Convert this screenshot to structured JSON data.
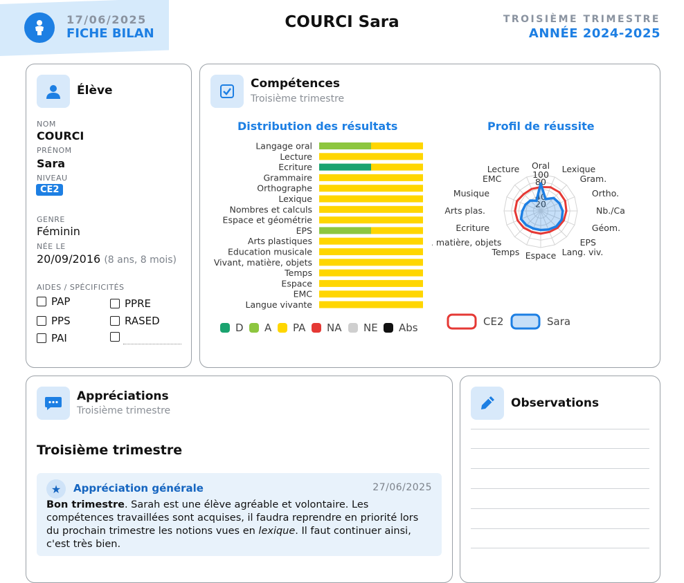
{
  "header": {
    "date": "17/06/2025",
    "doc_type": "FICHE BILAN",
    "student_name": "COURCI Sara",
    "trimester": "TROISIÈME TRIMESTRE",
    "school_year": "ANNÉE 2024-2025"
  },
  "student_card": {
    "title": "Élève",
    "nom_label": "NOM",
    "nom": "COURCI",
    "prenom_label": "PRÉNOM",
    "prenom": "Sara",
    "niveau_label": "NIVEAU",
    "niveau": "CE2",
    "genre_label": "GENRE",
    "genre": "Féminin",
    "nee_label": "NÉE LE",
    "nee_le": "20/09/2016",
    "age": "(8 ans, 8 mois)",
    "aides_label": "AIDES / SPÉCIFICITÉS",
    "aides": [
      "PAP",
      "PPRE",
      "PPS",
      "RASED",
      "PAI",
      ""
    ]
  },
  "competences_card": {
    "title": "Compétences",
    "subtitle": "Troisième trimestre",
    "bar_chart_title": "Distribution des résultats",
    "radar_chart_title": "Profil de réussite"
  },
  "chart_data": [
    {
      "type": "bar",
      "orientation": "horizontal",
      "stacked": true,
      "title": "Distribution des résultats",
      "categories": [
        "Langage oral",
        "Lecture",
        "Ecriture",
        "Grammaire",
        "Orthographe",
        "Lexique",
        "Nombres et calculs",
        "Espace et géométrie",
        "EPS",
        "Arts plastiques",
        "Education musicale",
        "Vivant, matière, objets",
        "Temps",
        "Espace",
        "EMC",
        "Langue vivante"
      ],
      "series": [
        {
          "name": "D",
          "color": "#1aa36f",
          "values": [
            0,
            0,
            50,
            0,
            0,
            0,
            0,
            0,
            0,
            0,
            0,
            0,
            0,
            0,
            0,
            0
          ]
        },
        {
          "name": "A",
          "color": "#8dc63f",
          "values": [
            50,
            0,
            0,
            0,
            0,
            0,
            0,
            0,
            50,
            0,
            0,
            0,
            0,
            0,
            0,
            0
          ]
        },
        {
          "name": "PA",
          "color": "#ffd600",
          "values": [
            50,
            100,
            50,
            100,
            100,
            100,
            100,
            100,
            50,
            100,
            100,
            100,
            100,
            100,
            100,
            100
          ]
        },
        {
          "name": "NA",
          "color": "#e53935",
          "values": [
            0,
            0,
            0,
            0,
            0,
            0,
            0,
            0,
            0,
            0,
            0,
            0,
            0,
            0,
            0,
            0
          ]
        },
        {
          "name": "NE",
          "color": "#cfcfcf",
          "values": [
            0,
            0,
            0,
            0,
            0,
            0,
            0,
            0,
            0,
            0,
            0,
            0,
            0,
            0,
            0,
            0
          ]
        },
        {
          "name": "Abs",
          "color": "#111111",
          "values": [
            0,
            0,
            0,
            0,
            0,
            0,
            0,
            0,
            0,
            0,
            0,
            0,
            0,
            0,
            0,
            0
          ]
        }
      ],
      "xlim": [
        0,
        100
      ],
      "legend_position": "bottom"
    },
    {
      "type": "radar",
      "title": "Profil de réussite",
      "axes": [
        "Oral",
        "Lexique",
        "Gram.",
        "Ortho.",
        "Nb./Ca",
        "Géom.",
        "EPS",
        "Lang. viv.",
        "Espace",
        "Temps",
        "Vivant, matière, objets",
        "Ecriture",
        "Arts plas.",
        "Musique",
        "EMC",
        "Lecture"
      ],
      "rlim": [
        0,
        100
      ],
      "rticks": [
        "20",
        "40",
        "80",
        "100"
      ],
      "series": [
        {
          "name": "CE2",
          "color": "#e53935",
          "values": [
            65,
            70,
            72,
            72,
            70,
            68,
            65,
            62,
            62,
            62,
            65,
            68,
            70,
            70,
            65,
            65
          ]
        },
        {
          "name": "Sara",
          "color": "#1d7fe3",
          "values": [
            75,
            35,
            50,
            55,
            60,
            62,
            60,
            55,
            52,
            52,
            55,
            58,
            50,
            45,
            40,
            30
          ]
        }
      ],
      "legend_position": "bottom"
    }
  ],
  "appreciations_card": {
    "title": "Appréciations",
    "subtitle": "Troisième trimestre",
    "section_heading": "Troisième trimestre",
    "general_title": "Appréciation générale",
    "general_date": "27/06/2025",
    "text_bold": "Bon trimestre",
    "text_part1": ". Sarah est une élève agréable et volontaire. Les compétences travaillées sont acquises, il faudra reprendre en priorité lors du prochain trimestre les notions vues en ",
    "text_italic": "lexique",
    "text_part2": ". Il faut continuer ainsi, c'est très bien."
  },
  "observations_card": {
    "title": "Observations"
  }
}
